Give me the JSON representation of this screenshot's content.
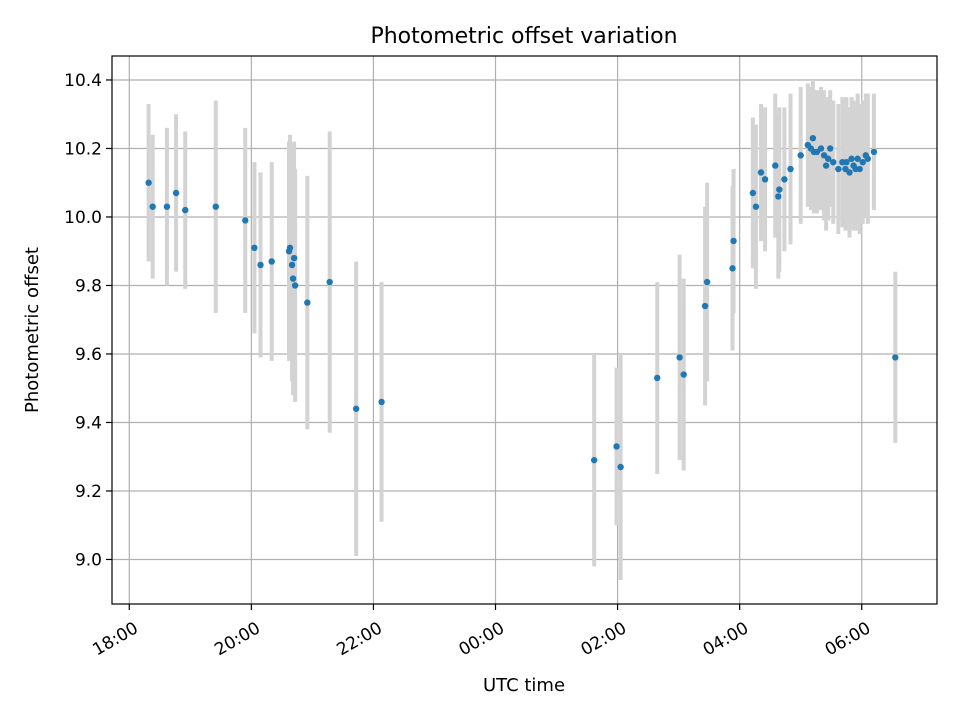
{
  "chart_data": {
    "type": "scatter",
    "title": "Photometric offset variation",
    "xlabel": "UTC time",
    "ylabel": "Photometric offset",
    "x_axis": {
      "kind": "time",
      "range": [
        "17:43",
        "07:14"
      ],
      "ticks": [
        {
          "t": "18:00",
          "label": "18:00"
        },
        {
          "t": "20:00",
          "label": "20:00"
        },
        {
          "t": "22:00",
          "label": "22:00"
        },
        {
          "t": "00:00",
          "label": "00:00"
        },
        {
          "t": "02:00",
          "label": "02:00"
        },
        {
          "t": "04:00",
          "label": "04:00"
        },
        {
          "t": "06:00",
          "label": "06:00"
        }
      ],
      "tick_rotation": 30
    },
    "y_axis": {
      "range": [
        8.87,
        10.47
      ],
      "ticks": [
        {
          "v": 9.0,
          "label": "9.0"
        },
        {
          "v": 9.2,
          "label": "9.2"
        },
        {
          "v": 9.4,
          "label": "9.4"
        },
        {
          "v": 9.6,
          "label": "9.6"
        },
        {
          "v": 9.8,
          "label": "9.8"
        },
        {
          "v": 10.0,
          "label": "10.0"
        },
        {
          "v": 10.2,
          "label": "10.2"
        },
        {
          "v": 10.4,
          "label": "10.4"
        }
      ]
    },
    "grid": true,
    "colors": {
      "points": "#1f77b4",
      "errorbars": "#d3d3d3"
    },
    "series": [
      {
        "points": [
          [
            "18:19",
            10.1,
            0.23
          ],
          [
            "18:23",
            10.03,
            0.21
          ],
          [
            "18:37",
            10.03,
            0.23
          ],
          [
            "18:46",
            10.07,
            0.23
          ],
          [
            "18:55",
            10.02,
            0.23
          ],
          [
            "19:25",
            10.03,
            0.31
          ],
          [
            "19:54",
            9.99,
            0.27
          ],
          [
            "20:03",
            9.91,
            0.25
          ],
          [
            "20:09",
            9.86,
            0.27
          ],
          [
            "20:20",
            9.87,
            0.29
          ],
          [
            "20:37",
            9.9,
            0.32
          ],
          [
            "20:38",
            9.91,
            0.33
          ],
          [
            "20:40",
            9.86,
            0.34
          ],
          [
            "20:41",
            9.82,
            0.34
          ],
          [
            "20:42",
            9.88,
            0.34
          ],
          [
            "20:43",
            9.8,
            0.34
          ],
          [
            "20:55",
            9.75,
            0.37
          ],
          [
            "21:17",
            9.81,
            0.44
          ],
          [
            "21:43",
            9.44,
            0.43
          ],
          [
            "22:08",
            9.46,
            0.35
          ],
          [
            "01:37",
            9.29,
            0.31
          ],
          [
            "01:59",
            9.33,
            0.23
          ],
          [
            "02:03",
            9.27,
            0.33
          ],
          [
            "02:39",
            9.53,
            0.28
          ],
          [
            "03:01",
            9.59,
            0.3
          ],
          [
            "03:05",
            9.54,
            0.28
          ],
          [
            "03:26",
            9.74,
            0.29
          ],
          [
            "03:28",
            9.81,
            0.29
          ],
          [
            "03:53",
            9.85,
            0.24
          ],
          [
            "03:54",
            9.93,
            0.21
          ],
          [
            "04:13",
            10.07,
            0.22
          ],
          [
            "04:16",
            10.03,
            0.24
          ],
          [
            "04:21",
            10.13,
            0.2
          ],
          [
            "04:25",
            10.11,
            0.21
          ],
          [
            "04:35",
            10.15,
            0.21
          ],
          [
            "04:38",
            10.06,
            0.24
          ],
          [
            "04:39",
            10.08,
            0.24
          ],
          [
            "04:44",
            10.11,
            0.21
          ],
          [
            "04:50",
            10.14,
            0.22
          ],
          [
            "05:00",
            10.18,
            0.2
          ],
          [
            "05:07",
            10.21,
            0.18
          ],
          [
            "05:10",
            10.2,
            0.18
          ],
          [
            "05:12",
            10.23,
            0.17
          ],
          [
            "05:13",
            10.19,
            0.18
          ],
          [
            "05:16",
            10.19,
            0.18
          ],
          [
            "05:20",
            10.2,
            0.18
          ],
          [
            "05:23",
            10.18,
            0.19
          ],
          [
            "05:25",
            10.15,
            0.19
          ],
          [
            "05:27",
            10.17,
            0.18
          ],
          [
            "05:29",
            10.2,
            0.17
          ],
          [
            "05:32",
            10.16,
            0.18
          ],
          [
            "05:37",
            10.14,
            0.19
          ],
          [
            "05:41",
            10.16,
            0.19
          ],
          [
            "05:44",
            10.14,
            0.18
          ],
          [
            "05:45",
            10.16,
            0.19
          ],
          [
            "05:48",
            10.13,
            0.19
          ],
          [
            "05:50",
            10.17,
            0.18
          ],
          [
            "05:52",
            10.15,
            0.19
          ],
          [
            "05:54",
            10.14,
            0.18
          ],
          [
            "05:56",
            10.17,
            0.19
          ],
          [
            "05:58",
            10.14,
            0.19
          ],
          [
            "06:01",
            10.16,
            0.18
          ],
          [
            "06:04",
            10.18,
            0.18
          ],
          [
            "06:06",
            10.17,
            0.19
          ],
          [
            "06:12",
            10.19,
            0.17
          ],
          [
            "06:33",
            9.59,
            0.25
          ]
        ]
      }
    ]
  }
}
